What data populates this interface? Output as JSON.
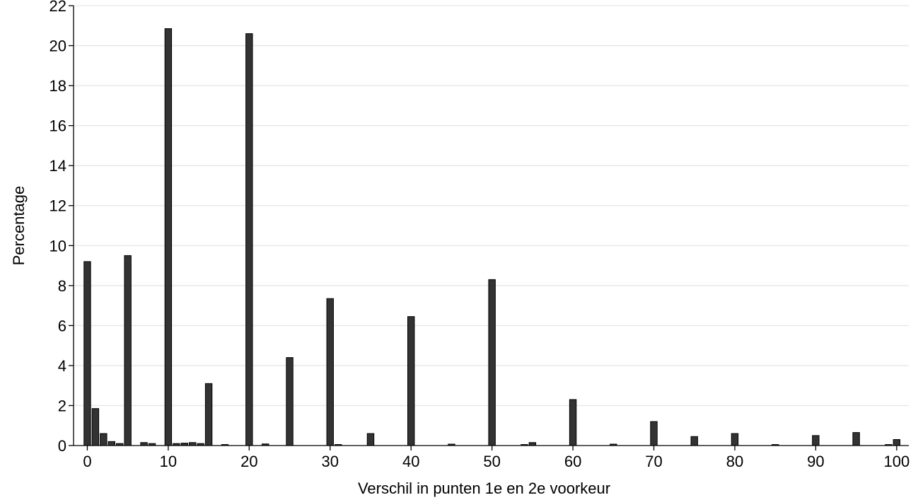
{
  "chart_data": {
    "type": "bar",
    "title": "",
    "xlabel": "Verschil in punten 1e en 2e voorkeur",
    "ylabel": "Percentage",
    "xlim": [
      -1.7,
      101.5
    ],
    "ylim": [
      0,
      22
    ],
    "grid": true,
    "bar_color": "#333333",
    "bar_edge_color": "#000000",
    "grid_color": "#e6e6e6",
    "xticks": [
      "0",
      "10",
      "20",
      "30",
      "40",
      "50",
      "60",
      "70",
      "80",
      "90",
      "100"
    ],
    "yticks": [
      "0",
      "2",
      "4",
      "6",
      "8",
      "10",
      "12",
      "14",
      "16",
      "18",
      "20",
      "22"
    ],
    "x": [
      0,
      1,
      2,
      3,
      4,
      5,
      7,
      8,
      10,
      11,
      12,
      13,
      14,
      15,
      17,
      20,
      22,
      25,
      30,
      31,
      35,
      40,
      45,
      50,
      54,
      55,
      60,
      65,
      70,
      75,
      80,
      85,
      90,
      95,
      99,
      100
    ],
    "values": [
      9.2,
      1.85,
      0.6,
      0.2,
      0.1,
      9.5,
      0.15,
      0.1,
      20.85,
      0.1,
      0.12,
      0.15,
      0.1,
      3.1,
      0.05,
      20.6,
      0.08,
      4.4,
      7.35,
      0.05,
      0.6,
      6.45,
      0.07,
      8.3,
      0.05,
      0.15,
      2.3,
      0.07,
      1.2,
      0.45,
      0.6,
      0.05,
      0.5,
      0.65,
      0.05,
      0.3
    ]
  }
}
